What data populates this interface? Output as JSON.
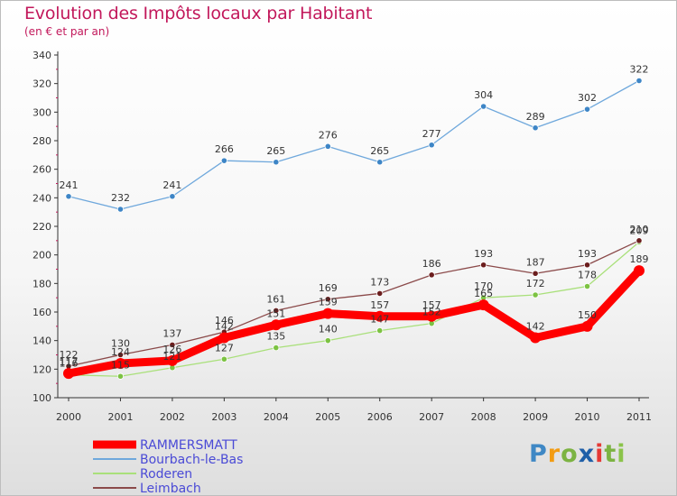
{
  "title": "Evolution des Impôts locaux par Habitant",
  "subtitle": "(en € et par an)",
  "logo": {
    "text": "Proxiti",
    "letters": [
      "P",
      "r",
      "o",
      "x",
      "i",
      "t",
      "i"
    ]
  },
  "chart_data": {
    "type": "line",
    "title": "Evolution des Impôts locaux par Habitant",
    "subtitle": "(en € et par an)",
    "x": [
      "2000",
      "2001",
      "2002",
      "2003",
      "2004",
      "2005",
      "2006",
      "2007",
      "2008",
      "2009",
      "2010",
      "2011"
    ],
    "ylim": [
      100,
      340
    ],
    "yticks": [
      100,
      120,
      140,
      160,
      180,
      200,
      220,
      240,
      260,
      280,
      300,
      320,
      340
    ],
    "grid": false,
    "legend_position": "bottom-left",
    "series": [
      {
        "name": "RAMMERSMATT",
        "color": "#ff0000",
        "marker_color": "#ff0000",
        "values": [
          117,
          124,
          126,
          142,
          151,
          159,
          157,
          157,
          165,
          142,
          150,
          189
        ]
      },
      {
        "name": "Bourbach-le-Bas",
        "color": "#6fa8dc",
        "marker_color": "#3d85c6",
        "values": [
          241,
          232,
          241,
          266,
          265,
          276,
          265,
          277,
          304,
          289,
          302,
          322
        ]
      },
      {
        "name": "Roderen",
        "color": "#a9e07a",
        "marker_color": "#7cc242",
        "values": [
          116,
          115,
          121,
          127,
          135,
          140,
          147,
          152,
          170,
          172,
          178,
          209
        ]
      },
      {
        "name": "Leimbach",
        "color": "#8b4a4a",
        "marker_color": "#6b1d1d",
        "values": [
          122,
          130,
          137,
          146,
          161,
          169,
          173,
          186,
          193,
          187,
          193,
          210
        ]
      }
    ]
  }
}
